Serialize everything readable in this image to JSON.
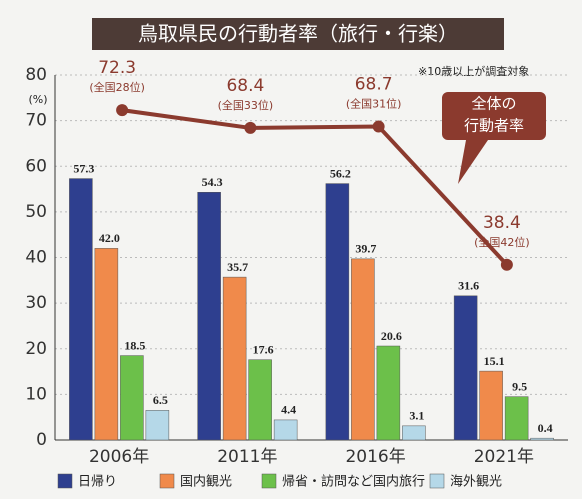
{
  "chart_data": {
    "type": "bar",
    "title": "鳥取県民の行動者率（旅行・行楽）",
    "note": "※10歳以上が調査対象",
    "y_unit": "(%)",
    "annotation": [
      "全体の",
      "行動者率"
    ],
    "categories": [
      "2006年",
      "2011年",
      "2016年",
      "2021年"
    ],
    "series": [
      {
        "name": "日帰り",
        "color": "#2e3f8f",
        "values": [
          57.3,
          54.3,
          56.2,
          31.6
        ]
      },
      {
        "name": "国内観光",
        "color": "#f08a4b",
        "values": [
          42.0,
          35.7,
          39.7,
          15.1
        ],
        "value_labels": [
          "42.0",
          "35.7",
          "39.7",
          "15.1"
        ]
      },
      {
        "name": "帰省・訪問など国内旅行",
        "color": "#6cc04a",
        "values": [
          18.5,
          17.6,
          20.6,
          9.5
        ]
      },
      {
        "name": "海外観光",
        "color": "#b5d8e8",
        "values": [
          6.5,
          4.4,
          3.1,
          0.4
        ]
      }
    ],
    "line": {
      "type": "line",
      "color": "#8b3a2e",
      "values": [
        72.3,
        68.4,
        68.7,
        38.4
      ],
      "ranks": [
        "(全国28位)",
        "(全国33位)",
        "(全国31位)",
        "(全国42位)"
      ]
    },
    "ylim": [
      0,
      80
    ],
    "yticks": [
      0,
      10,
      20,
      30,
      40,
      50,
      60,
      70,
      80
    ],
    "grid": true
  }
}
